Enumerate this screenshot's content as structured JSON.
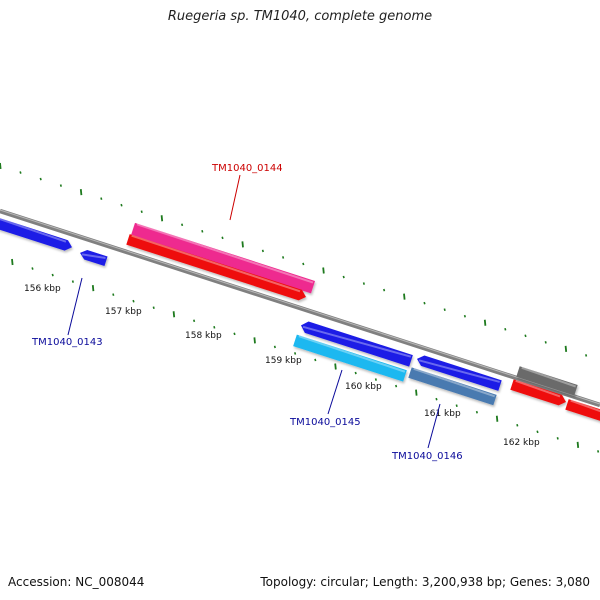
{
  "title": "Ruegeria sp. TM1040, complete genome",
  "footer": {
    "accession": "Accession: NC_008044",
    "summary": "Topology: circular; Length: 3,200,938 bp; Genes: 3,080"
  },
  "scale_labels": [
    "156 kbp",
    "157 kbp",
    "158 kbp",
    "159 kbp",
    "160 kbp",
    "161 kbp",
    "162 kbp"
  ],
  "gene_labels": {
    "g0143": "TM1040_0143",
    "g0144": "TM1040_0144",
    "g0145": "TM1040_0145",
    "g0146": "TM1040_0146"
  },
  "colors": {
    "backbone": "#808080",
    "tick": "#1e7a1e",
    "label_blue": "#0a0a9a",
    "label_red": "#cc0000",
    "blue": "#1a1ae6",
    "red": "#ee1111",
    "pink": "#ee2a8f",
    "cyan": "#1ab8f0",
    "steel": "#4a7ab0",
    "gray": "#6a6a6a"
  }
}
